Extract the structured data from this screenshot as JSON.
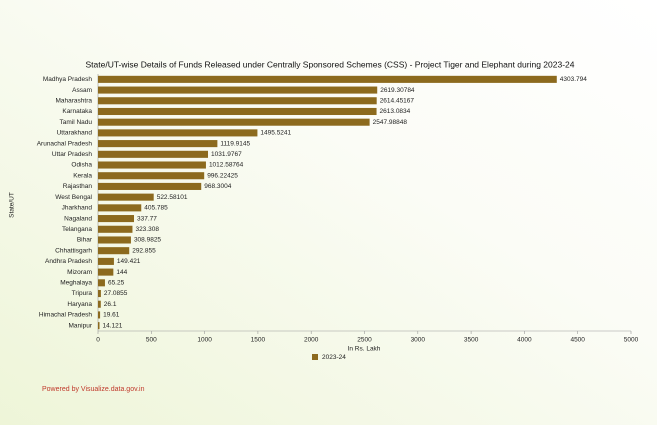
{
  "chart_data": {
    "type": "hbar",
    "title": "State/UT-wise Details of Funds Released under Centrally Sponsored Schemes (CSS) - Project Tiger and Elephant during 2023-24",
    "x_label": "In Rs. Lakh",
    "y_label": "State/UT",
    "categories": [
      "Madhya Pradesh",
      "Assam",
      "Maharashtra",
      "Karnataka",
      "Tamil Nadu",
      "Uttarakhand",
      "Arunachal Pradesh",
      "Uttar Pradesh",
      "Odisha",
      "Kerala",
      "Rajasthan",
      "West Bengal",
      "Jharkhand",
      "Nagaland",
      "Telangana",
      "Bihar",
      "Chhattisgarh",
      "Andhra Pradesh",
      "Mizoram",
      "Meghalaya",
      "Tripura",
      "Haryana",
      "Himachal Pradesh",
      "Manipur"
    ],
    "series": [
      {
        "name": "2023-24",
        "color": "#8c6a1e",
        "values": [
          4303.794,
          2619.30784,
          2614.45167,
          2613.0834,
          2547.98848,
          1495.5241,
          1119.9145,
          1031.9767,
          1012.58764,
          996.22425,
          968.3004,
          522.58101,
          405.785,
          337.77,
          323.308,
          308.9825,
          292.855,
          149.421,
          144,
          65.25,
          27.0855,
          26.1,
          19.61,
          14.121
        ]
      }
    ],
    "xlim": [
      0,
      5000
    ],
    "xticks": [
      0,
      500,
      1000,
      1500,
      2000,
      2500,
      3000,
      3500,
      4000,
      4500,
      5000
    ],
    "grid": false,
    "footer": "Powered by Visualize.data.gov.in"
  }
}
